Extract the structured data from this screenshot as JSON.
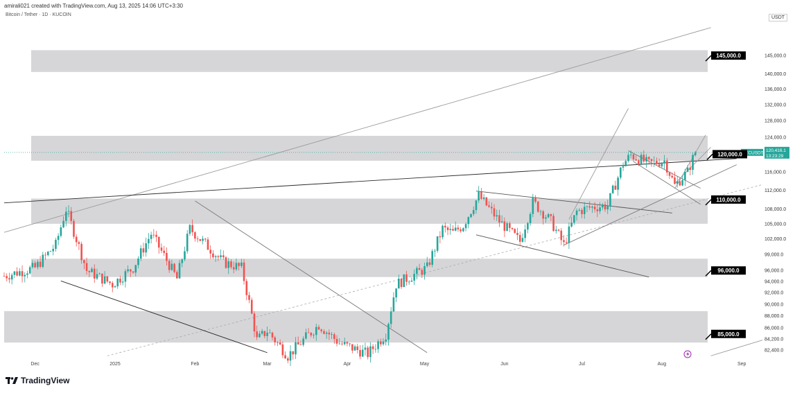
{
  "header": {
    "credit": "amirali021 created with TradingView.com, Aug 13, 2025 14:06 UTC+3:30",
    "symbol_title": "Bitcoin / Tether · 1D · KUCOIN",
    "currency": "USDT",
    "brand": "TradingView"
  },
  "chart_data": {
    "type": "candlestick",
    "title": "Bitcoin / Tether · 1D · KUCOIN",
    "ylabel": "USDT",
    "y_scale": "log",
    "ylim": [
      81000,
      155000
    ],
    "y_ticks": [
      {
        "value": 145000,
        "label": "145,000.0"
      },
      {
        "value": 140000,
        "label": "140,000.0"
      },
      {
        "value": 136000,
        "label": "136,000.0"
      },
      {
        "value": 132000,
        "label": "132,000.0"
      },
      {
        "value": 128000,
        "label": "128,000.0"
      },
      {
        "value": 124000,
        "label": "124,000.0"
      },
      {
        "value": 116000,
        "label": "116,000.0"
      },
      {
        "value": 112000,
        "label": "112,000.0"
      },
      {
        "value": 108000,
        "label": "108,000.0"
      },
      {
        "value": 105000,
        "label": "105,000.0"
      },
      {
        "value": 102000,
        "label": "102,000.0"
      },
      {
        "value": 99000,
        "label": "99,000.0"
      },
      {
        "value": 96000,
        "label": "96,000.0"
      },
      {
        "value": 94000,
        "label": "94,000.0"
      },
      {
        "value": 92000,
        "label": "92,000.0"
      },
      {
        "value": 90000,
        "label": "90,000.0"
      },
      {
        "value": 88000,
        "label": "88,000.0"
      },
      {
        "value": 86000,
        "label": "86,000.0"
      },
      {
        "value": 84200,
        "label": "84,200.0"
      },
      {
        "value": 82400,
        "label": "82,400.0"
      }
    ],
    "x_ticks": [
      "Dec",
      "2025",
      "Feb",
      "Mar",
      "Apr",
      "May",
      "Jun",
      "Jul",
      "Aug",
      "Sep"
    ],
    "x_range_days": [
      -12,
      282
    ],
    "x_tick_days": [
      0,
      31,
      62,
      90,
      121,
      151,
      182,
      212,
      243,
      274
    ],
    "current_price": {
      "label": "BTCUSDT",
      "value": 120416.1,
      "value_text": "120,416.1",
      "countdown": "13:23:29"
    },
    "zones": [
      {
        "name": "145,000.0",
        "low": 140500,
        "high": 146500,
        "tag_value": 145000
      },
      {
        "name": "120,000.0",
        "low": 118500,
        "high": 124300,
        "tag_value": 120000
      },
      {
        "name": "110,000.0",
        "low": 105000,
        "high": 110200,
        "tag_value": 110000
      },
      {
        "name": "96,000.0",
        "low": 94800,
        "high": 98200,
        "tag_value": 96000
      },
      {
        "name": "85,000.0",
        "low": 83600,
        "high": 88800,
        "tag_value": 85000
      }
    ],
    "level_tags": [
      "145,000.0",
      "120,000.0",
      "110,000.0",
      "96,000.0",
      "85,000.0"
    ],
    "trendlines": [
      {
        "from": [
          -12,
          103300
        ],
        "to": [
          262,
          153000
        ],
        "color": "#9a9a9a"
      },
      {
        "from": [
          -12,
          109300
        ],
        "to": [
          272,
          119000
        ],
        "color": "#2a2a2a"
      },
      {
        "from": [
          10,
          94100
        ],
        "to": [
          90,
          82000
        ],
        "color": "#2a2a2a"
      },
      {
        "from": [
          62,
          109700
        ],
        "to": [
          152,
          82000
        ],
        "color": "#7a7a7a"
      },
      {
        "from": [
          171,
          102800
        ],
        "to": [
          238,
          94800
        ],
        "color": "#555555"
      },
      {
        "from": [
          171,
          111800
        ],
        "to": [
          247,
          107200
        ],
        "color": "#555555"
      },
      {
        "from": [
          205,
          100800
        ],
        "to": [
          272,
          117600
        ],
        "color": "#7a7a7a"
      },
      {
        "from": [
          207,
          105900
        ],
        "to": [
          230,
          131000
        ],
        "color": "#9a9a9a"
      },
      {
        "from": [
          230,
          120800
        ],
        "to": [
          258,
          112400
        ],
        "color": "#7a7a7a"
      },
      {
        "from": [
          232,
          118300
        ],
        "to": [
          258,
          109000
        ],
        "color": "#7a7a7a"
      },
      {
        "from": [
          248,
          112300
        ],
        "to": [
          260,
          124500
        ],
        "color": "#9a9a9a"
      },
      {
        "from": [
          248,
          113400
        ],
        "to": [
          262,
          121600
        ],
        "color": "#9a9a9a"
      },
      {
        "from": [
          262,
          81500
        ],
        "to": [
          282,
          84000
        ],
        "color": "#9a9a9a"
      }
    ],
    "dashed_lines": [
      {
        "from": [
          28,
          81500
        ],
        "to": [
          282,
          113200
        ],
        "color": "#aaaaaa"
      }
    ],
    "close_series": [
      {
        "start_day": -12,
        "end_day": 0,
        "from": 95000,
        "to": 96500
      },
      {
        "start_day": 0,
        "end_day": 8,
        "from": 96500,
        "to": 100800
      },
      {
        "start_day": 8,
        "end_day": 12,
        "from": 100800,
        "to": 108000
      },
      {
        "start_day": 12,
        "end_day": 20,
        "from": 108000,
        "to": 96000
      },
      {
        "start_day": 20,
        "end_day": 30,
        "from": 96000,
        "to": 93500
      },
      {
        "start_day": 30,
        "end_day": 38,
        "from": 93500,
        "to": 96500
      },
      {
        "start_day": 38,
        "end_day": 45,
        "from": 96500,
        "to": 103000
      },
      {
        "start_day": 45,
        "end_day": 55,
        "from": 103000,
        "to": 94500
      },
      {
        "start_day": 55,
        "end_day": 60,
        "from": 94500,
        "to": 104000
      },
      {
        "start_day": 60,
        "end_day": 66,
        "from": 104000,
        "to": 101000
      },
      {
        "start_day": 66,
        "end_day": 73,
        "from": 101000,
        "to": 97500
      },
      {
        "start_day": 73,
        "end_day": 80,
        "from": 97500,
        "to": 96500
      },
      {
        "start_day": 80,
        "end_day": 86,
        "from": 96500,
        "to": 84000
      },
      {
        "start_day": 86,
        "end_day": 90,
        "from": 84000,
        "to": 85500
      },
      {
        "start_day": 90,
        "end_day": 98,
        "from": 85500,
        "to": 81500
      },
      {
        "start_day": 98,
        "end_day": 110,
        "from": 81500,
        "to": 86500
      },
      {
        "start_day": 110,
        "end_day": 118,
        "from": 86500,
        "to": 83500
      },
      {
        "start_day": 118,
        "end_day": 129,
        "from": 83500,
        "to": 81800
      },
      {
        "start_day": 129,
        "end_day": 136,
        "from": 81800,
        "to": 85000
      },
      {
        "start_day": 136,
        "end_day": 140,
        "from": 85000,
        "to": 93500
      },
      {
        "start_day": 140,
        "end_day": 152,
        "from": 93500,
        "to": 96500
      },
      {
        "start_day": 152,
        "end_day": 158,
        "from": 96500,
        "to": 104000
      },
      {
        "start_day": 158,
        "end_day": 162,
        "from": 104000,
        "to": 103200
      },
      {
        "start_day": 162,
        "end_day": 166,
        "from": 103200,
        "to": 104700
      },
      {
        "start_day": 166,
        "end_day": 172,
        "from": 104700,
        "to": 110800
      },
      {
        "start_day": 172,
        "end_day": 180,
        "from": 110800,
        "to": 105500
      },
      {
        "start_day": 180,
        "end_day": 188,
        "from": 105500,
        "to": 101500
      },
      {
        "start_day": 188,
        "end_day": 193,
        "from": 101500,
        "to": 109500
      },
      {
        "start_day": 193,
        "end_day": 200,
        "from": 109500,
        "to": 105500
      },
      {
        "start_day": 200,
        "end_day": 205,
        "from": 105500,
        "to": 100800
      },
      {
        "start_day": 205,
        "end_day": 210,
        "from": 100800,
        "to": 107500
      },
      {
        "start_day": 210,
        "end_day": 215,
        "from": 107500,
        "to": 108300
      },
      {
        "start_day": 215,
        "end_day": 222,
        "from": 108300,
        "to": 108800
      },
      {
        "start_day": 222,
        "end_day": 228,
        "from": 108800,
        "to": 117800
      },
      {
        "start_day": 228,
        "end_day": 231,
        "from": 117800,
        "to": 119800
      },
      {
        "start_day": 231,
        "end_day": 238,
        "from": 119800,
        "to": 117800
      },
      {
        "start_day": 238,
        "end_day": 244,
        "from": 117800,
        "to": 118500
      },
      {
        "start_day": 244,
        "end_day": 248,
        "from": 118500,
        "to": 113000
      },
      {
        "start_day": 248,
        "end_day": 253,
        "from": 113000,
        "to": 116000
      },
      {
        "start_day": 253,
        "end_day": 256,
        "from": 116000,
        "to": 120416
      }
    ],
    "candle_start_day": -12,
    "candle_end_day": 256,
    "up_color": "#26a69a",
    "down_color": "#ef5350"
  },
  "colors": {
    "zone": "#d6d6d9",
    "tag_bg": "#000000",
    "price_tag": "#26a69a",
    "up": "#26a69a",
    "down": "#ef5350",
    "crosshair": "#26a69a",
    "lightning": "#9c27b0"
  }
}
